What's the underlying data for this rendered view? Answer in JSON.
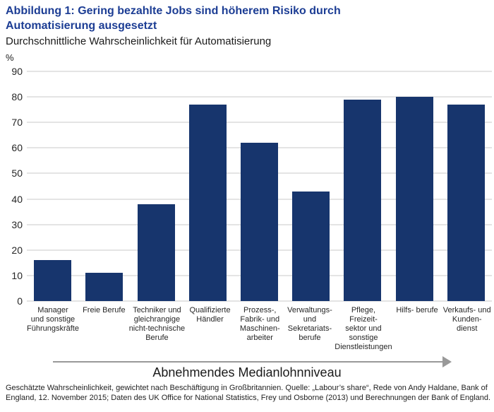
{
  "title": {
    "line1": "Abbildung 1: Gering bezahlte Jobs sind höherem Risiko durch",
    "line2": "Automatisierung ausgesetzt"
  },
  "subtitle": "Durchschnittliche Wahrscheinlichkeit für Automatisierung",
  "unit_label": "%",
  "x_axis_annotation": "Abnehmendes Medianlohnniveau",
  "footnote": "Geschätzte Wahrscheinlichkeit, gewichtet nach Beschäftigung in Großbritannien. Quelle: „Labour’s share“, Rede von Andy Haldane, Bank of England, 12. November 2015; Daten des UK Office for National Statistics, Frey und Osborne (2013) und Berechnungen der Bank of England.",
  "colors": {
    "bar": "#17356d",
    "title": "#1c3d94",
    "gridline": "#c9c9c9",
    "arrow": "#999999",
    "text": "#1f1f1f"
  },
  "chart_data": {
    "type": "bar",
    "title": "Durchschnittliche Wahrscheinlichkeit für Automatisierung",
    "ylabel": "%",
    "xlabel": "Abnehmendes Medianlohnniveau",
    "ylim": [
      0,
      90
    ],
    "yticks": [
      90,
      80,
      70,
      60,
      50,
      40,
      30,
      20,
      10,
      0
    ],
    "grid": true,
    "legend": false,
    "categories": [
      "Manager und sonstige Führungskräfte",
      "Freie Berufe",
      "Techniker und gleichrangige nicht-technische Berufe",
      "Qualifizierte Händler",
      "Prozess-, Fabrik- und Maschinenarbeiter",
      "Verwaltungs- und Sekretariatsberufe",
      "Pflege, Freizeitsektor und sonstige Dienstleistungen",
      "Hilfs- berufe",
      "Verkaufs- und Kundendienst"
    ],
    "category_lines": [
      [
        "Manager",
        "und sonstige",
        "Führungskräfte"
      ],
      [
        "Freie Berufe"
      ],
      [
        "Techniker und",
        "gleichrangige",
        "nicht-technische",
        "Berufe"
      ],
      [
        "Qualifizierte",
        "Händler"
      ],
      [
        "Prozess-,",
        "Fabrik- und",
        "Maschinen-",
        "arbeiter"
      ],
      [
        "Verwaltungs-",
        "und",
        "Sekretariats-",
        "berufe"
      ],
      [
        "Pflege,",
        "Freizeit-",
        "sektor und",
        "sonstige",
        "Dienstleistungen"
      ],
      [
        "Hilfs- berufe"
      ],
      [
        "Verkaufs- und",
        "Kunden-",
        "dienst"
      ]
    ],
    "values": [
      16,
      11,
      38,
      77,
      62,
      43,
      79,
      80,
      77
    ]
  }
}
